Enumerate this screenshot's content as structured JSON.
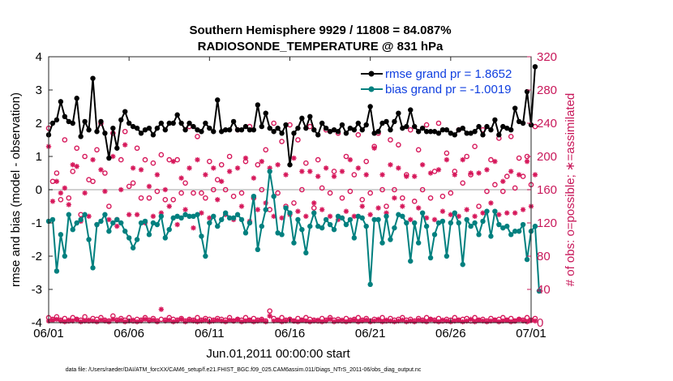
{
  "chart_data": {
    "type": "line",
    "title_line1": "Southern Hemisphere 9929 / 11808 = 84.087%",
    "title_line2": "RADIOSONDE_TEMPERATURE @ 831 hPa",
    "ylabel_left": "rmse and bias (model - observation)",
    "ylabel_right": "# of obs: o=possible; ∗=assimilated",
    "xlabel": "Jun.01,2011 00:00:00 start",
    "footnote": "data file: /Users/raeder/DAI/ATM_forcXX/CAM6_setup/f.e21.FHIST_BGC.f09_025.CAM6assim.011/Diags_NTrS_2011-06/obs_diag_output.nc",
    "ylim_left": [
      -4,
      4
    ],
    "ylim_right": [
      0,
      320
    ],
    "xlim_days": [
      0,
      30
    ],
    "left_ticks": [
      "4",
      "3",
      "2",
      "1",
      "0",
      "-1",
      "-2",
      "-3",
      "-4"
    ],
    "right_ticks": [
      "320",
      "280",
      "240",
      "200",
      "160",
      "120",
      "80",
      "40",
      "0"
    ],
    "x_ticks": [
      "06/01",
      "06/06",
      "06/11",
      "06/16",
      "06/21",
      "06/26",
      "07/01"
    ],
    "colors": {
      "rmse": "#000000",
      "bias": "#00807f",
      "obs": "#d6175a",
      "legend_text": "#1140e0",
      "right_axis": "#c8185a",
      "zero_line": "#c0c0c0"
    },
    "legend": [
      {
        "name": "rmse grand pr = 1.8652"
      },
      {
        "name": "bias grand pr = -1.0019"
      }
    ],
    "series": [
      {
        "name": "rmse",
        "step_days": 0.25,
        "values": [
          1.65,
          2.0,
          2.1,
          2.65,
          2.2,
          2.05,
          2.0,
          2.75,
          1.6,
          2.05,
          1.8,
          3.35,
          1.75,
          2.05,
          1.7,
          0.95,
          1.85,
          1.25,
          2.1,
          2.35,
          2.0,
          1.9,
          1.85,
          1.7,
          1.8,
          1.85,
          1.65,
          1.85,
          2.0,
          1.8,
          2.0,
          2.0,
          2.25,
          2.0,
          1.8,
          2.0,
          1.9,
          1.8,
          1.75,
          2.0,
          1.85,
          1.75,
          2.7,
          1.75,
          1.8,
          1.8,
          2.05,
          1.8,
          1.8,
          1.9,
          1.8,
          1.8,
          2.55,
          1.9,
          2.3,
          1.85,
          1.75,
          1.85,
          1.7,
          1.95,
          0.75,
          1.7,
          1.85,
          2.15,
          1.85,
          2.2,
          1.8,
          1.65,
          2.0,
          1.85,
          1.75,
          1.8,
          1.75,
          1.95,
          1.7,
          1.85,
          1.8,
          2.0,
          1.8,
          1.95,
          2.5,
          1.7,
          1.75,
          2.0,
          2.05,
          1.8,
          2.05,
          2.3,
          1.85,
          1.9,
          2.4,
          1.9,
          1.75,
          1.85,
          1.75,
          1.75,
          1.75,
          1.7,
          1.8,
          1.8,
          1.7,
          1.65,
          1.8,
          1.85,
          1.7,
          1.7,
          1.75,
          1.9,
          1.65,
          1.9,
          1.8,
          2.1,
          1.65,
          1.9,
          1.85,
          1.8,
          2.45,
          2.05,
          2.0,
          2.95,
          1.95,
          3.7
        ]
      },
      {
        "name": "bias",
        "step_days": 0.25,
        "values": [
          -0.95,
          -0.9,
          -2.45,
          -1.35,
          -2.0,
          -0.75,
          -1.2,
          -1.0,
          -0.9,
          -0.75,
          -1.5,
          -2.35,
          -1.05,
          -0.95,
          -0.75,
          -1.25,
          -1.0,
          -0.9,
          -1.0,
          -1.25,
          -1.45,
          -1.75,
          -1.5,
          -1.0,
          -0.95,
          -1.35,
          -1.0,
          -1.05,
          -0.8,
          -1.45,
          -1.2,
          -0.85,
          -0.8,
          -0.85,
          -0.75,
          -0.8,
          -0.8,
          -0.75,
          -1.4,
          -2.0,
          -1.0,
          -0.8,
          -1.1,
          -0.9,
          -0.7,
          -0.85,
          -0.85,
          -0.75,
          -0.9,
          -1.3,
          -1.0,
          -0.2,
          -1.8,
          -1.1,
          -0.6,
          0.55,
          -0.2,
          -1.3,
          -1.35,
          -0.55,
          -0.7,
          -1.6,
          -0.9,
          -1.2,
          -1.9,
          -1.1,
          -0.7,
          -1.1,
          -1.15,
          -0.9,
          -1.05,
          -1.2,
          -0.8,
          -0.85,
          -1.05,
          -0.9,
          -1.45,
          -0.8,
          -0.85,
          -1.1,
          -2.85,
          -0.9,
          -0.9,
          -1.6,
          -0.8,
          -1.5,
          -1.15,
          -0.75,
          -0.8,
          -1.0,
          -2.15,
          -1.0,
          -1.6,
          -0.7,
          -1.1,
          -2.05,
          -1.35,
          -1.0,
          -0.95,
          -2.0,
          -1.0,
          -0.7,
          -1.0,
          -2.25,
          -0.9,
          -1.1,
          -1.0,
          -1.35,
          -0.95,
          -0.65,
          -1.4,
          -0.65,
          -1.05,
          -1.15,
          -1.1,
          -1.35,
          -1.25,
          -1.25,
          -1.05,
          -2.1,
          -1.25,
          -1.1,
          -3.05
        ]
      },
      {
        "name": "obs_possible",
        "step_days": 0.25,
        "values": [
          234,
          170,
          180,
          148,
          220,
          150,
          182,
          210,
          130,
          200,
          172,
          170,
          208,
          240,
          180,
          140,
          228,
          124,
          196,
          230,
          164,
          168,
          210,
          150,
          196,
          150,
          192,
          158,
          202,
          148,
          196,
          148,
          196,
          156,
          168,
          236,
          156,
          224,
          156,
          150,
          194,
          160,
          172,
          190,
          160,
          200,
          152,
          232,
          156,
          194,
          236,
          150,
          190,
          160,
          208,
          136,
          240,
          156,
          218,
          140,
          238,
          144,
          220,
          160,
          192,
          236,
          138,
          196,
          162,
          232,
          156,
          182,
          228,
          150,
          200,
          158,
          178,
          226,
          148,
          194,
          156,
          212,
          228,
          160,
          140,
          220,
          160,
          214,
          150,
          178,
          232,
          146,
          208,
          160,
          238,
          150,
          182,
          240,
          152,
          204,
          156,
          182,
          232,
          168,
          200,
          178,
          212,
          140,
          232,
          158,
          196,
          166,
          222,
          158,
          176,
          224,
          162,
          198,
          176,
          200,
          166,
          236
        ]
      },
      {
        "name": "obs_assimilated",
        "step_days": 0.25,
        "values": [
          212,
          146,
          170,
          156,
          162,
          142,
          190,
          188,
          122,
          156,
          128,
          196,
          118,
          184,
          158,
          124,
          200,
          116,
          160,
          214,
          130,
          186,
          130,
          184,
          120,
          164,
          128,
          178,
          132,
          160,
          140,
          194,
          118,
          174,
          136,
          186,
          114,
          196,
          132,
          178,
          126,
          186,
          148,
          170,
          130,
          182,
          124,
          186,
          140,
          198,
          122,
          174,
          136,
          194,
          144,
          186,
          128,
          190,
          126,
          178,
          130,
          198,
          134,
          182,
          128,
          182,
          144,
          176,
          136,
          186,
          128,
          176,
          124,
          182,
          134,
          196,
          128,
          186,
          140,
          178,
          130,
          210,
          138,
          178,
          132,
          190,
          150,
          186,
          140,
          176,
          124,
          176,
          138,
          190,
          126,
          180,
          124,
          184,
          134,
          196,
          130,
          178,
          128,
          196,
          136,
          180,
          128,
          180,
          132,
          184,
          144,
          194,
          130,
          170,
          132,
          182,
          132,
          178,
          136,
          194,
          140,
          178
        ]
      },
      {
        "name": "obs_possible_bottom",
        "step_days": 0.25,
        "values": [
          6,
          4,
          7,
          3,
          5,
          2,
          6,
          4,
          3,
          7,
          2,
          5,
          4,
          6,
          3,
          2,
          8,
          3,
          5,
          3,
          6,
          2,
          4,
          3,
          6,
          3,
          5,
          2,
          4,
          3,
          6,
          4,
          3,
          5,
          2,
          4,
          3,
          6,
          3,
          5,
          4,
          3,
          5,
          4,
          3,
          6,
          2,
          4,
          3,
          6,
          3,
          5,
          3,
          4,
          2,
          14,
          5,
          3,
          6,
          3,
          4,
          2,
          5,
          3,
          6,
          4,
          3,
          2,
          5,
          3,
          6,
          3,
          4,
          2,
          5,
          3,
          4,
          6,
          3,
          5,
          2,
          4,
          3,
          6,
          2,
          5,
          3,
          4,
          6,
          3,
          4,
          2,
          5,
          3,
          6,
          4,
          3,
          5,
          2,
          4,
          3,
          6,
          3,
          4,
          5,
          2,
          6,
          3,
          4,
          2,
          5,
          3,
          4,
          6,
          3,
          5,
          2,
          4,
          3,
          6,
          3,
          5
        ]
      },
      {
        "name": "obs_assimilated_bottom",
        "step_days": 0.25,
        "values": [
          2,
          3,
          4,
          2,
          1,
          3,
          2,
          4,
          1,
          2,
          3,
          2,
          1,
          3,
          2,
          1,
          4,
          2,
          3,
          1,
          2,
          3,
          1,
          2,
          4,
          2,
          3,
          1,
          16,
          2,
          3,
          1,
          2,
          4,
          1,
          3,
          2,
          1,
          2,
          3,
          1,
          2,
          3,
          2,
          1,
          3,
          2,
          4,
          1,
          2,
          3,
          1,
          2,
          3,
          1,
          8,
          2,
          3,
          1,
          2,
          4,
          2,
          1,
          3,
          2,
          1,
          2,
          3,
          1,
          2,
          4,
          1,
          2,
          3,
          1,
          2,
          3,
          1,
          2,
          3,
          1,
          2,
          4,
          1,
          3,
          2,
          1,
          2,
          3,
          1,
          2,
          1,
          3,
          2,
          1,
          4,
          2,
          1,
          3,
          2,
          1,
          2,
          3,
          1,
          2,
          4,
          1,
          3,
          2,
          1,
          2,
          3,
          1,
          2,
          3,
          1,
          2,
          4,
          2,
          1,
          3,
          2
        ]
      }
    ]
  }
}
